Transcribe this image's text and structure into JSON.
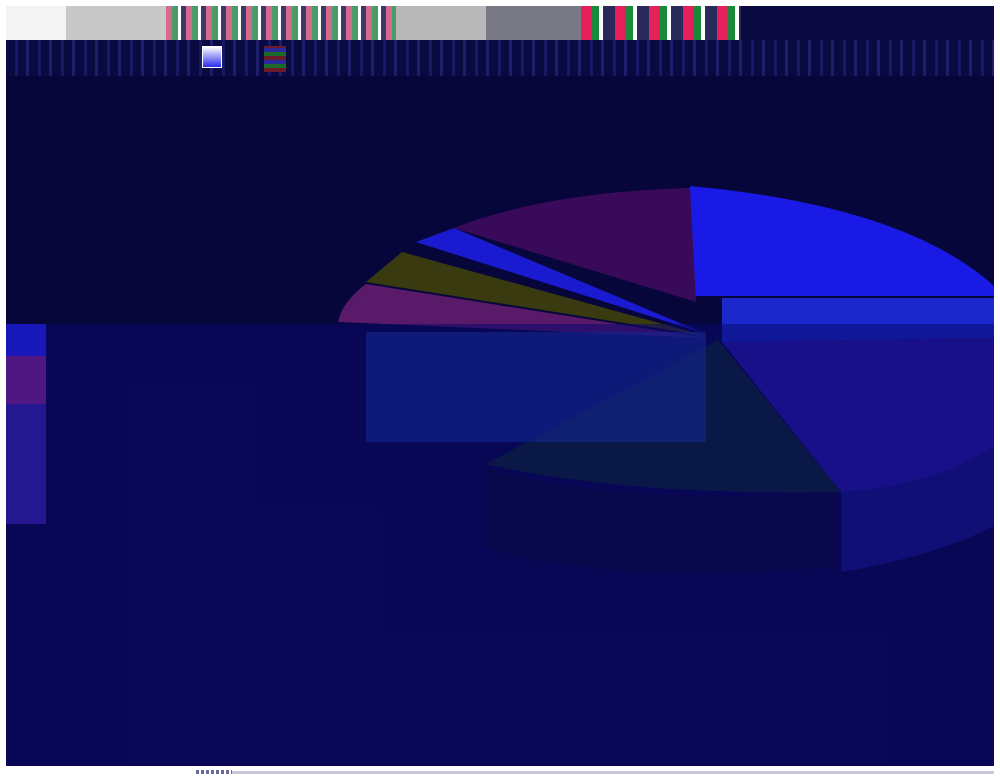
{
  "window": {
    "title_text": "",
    "footer_text": ""
  },
  "colors": {
    "background": "#06063a",
    "slice_blue": "#1a1ae6",
    "slice_purple": "#3a1a6a",
    "slice_olive": "#2a3a0a",
    "slice_dark_green": "#0a2a1a",
    "slice_violet": "#2a1ab0"
  },
  "chart_data": {
    "type": "pie",
    "style": "3d-exploded",
    "slices": [
      {
        "value": 24,
        "color": "#1a1ae6"
      },
      {
        "value": 12,
        "color": "#1a28cc"
      },
      {
        "value": 22,
        "color": "#3a1aa0"
      },
      {
        "value": 14,
        "color": "#0a2a1a"
      },
      {
        "value": 8,
        "color": "#5a1a6a"
      },
      {
        "value": 3,
        "color": "#3a3a10"
      },
      {
        "value": 3,
        "color": "#1a1ad0"
      },
      {
        "value": 14,
        "color": "#3a0a5a"
      }
    ],
    "title": "",
    "legend": "none"
  }
}
